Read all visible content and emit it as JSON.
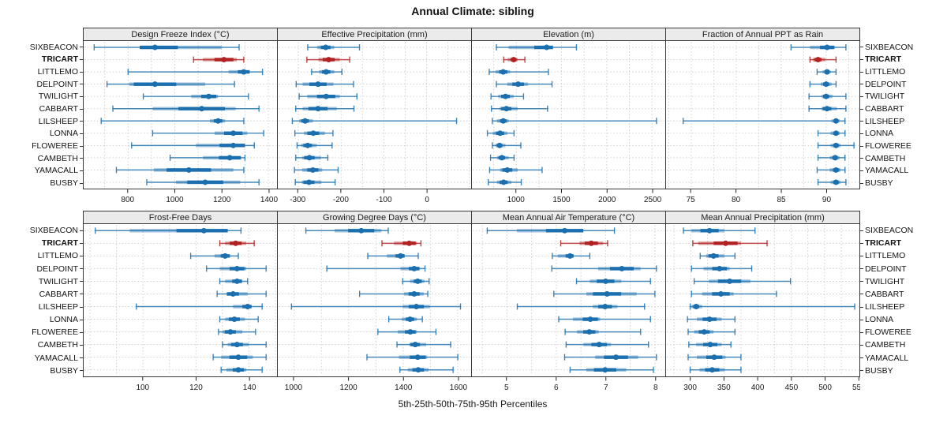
{
  "title": "Annual Climate: sibling",
  "footer": "5th-25th-50th-75th-95th Percentiles",
  "legend_meaning": "whisker=5th-95th, thick bar=25th-75th, dot=50th percentile",
  "stations": [
    "SIXBEACON",
    "TRICART",
    "LITTLEMO",
    "DELPOINT",
    "TWILIGHT",
    "CABBART",
    "LILSHEEP",
    "LONNA",
    "FLOWEREE",
    "CAMBETH",
    "YAMACALL",
    "BUSBY"
  ],
  "highlight_station": "TRICART",
  "colors": {
    "primary": "#1b6fae",
    "highlight": "#b22222",
    "grid": "#cfcfcf",
    "strip_bg": "#ebebeb",
    "border": "#383838",
    "text": "#1a1a1a"
  },
  "chart_data": [
    {
      "type": "percentile-dotplot",
      "title": "Design Freeze Index (°C)",
      "xlim": [
        610,
        1437
      ],
      "ticks": [
        800,
        1000,
        1200,
        1400
      ],
      "minor_step": 100,
      "series": [
        {
          "name": "SIXBEACON",
          "values": [
            655,
            850,
            915,
            1200,
            1275
          ]
        },
        {
          "name": "TRICART",
          "values": [
            1080,
            1120,
            1210,
            1265,
            1295
          ]
        },
        {
          "name": "LITTLEMO",
          "values": [
            800,
            1230,
            1295,
            1320,
            1375
          ]
        },
        {
          "name": "DELPOINT",
          "values": [
            710,
            805,
            915,
            1130,
            1255
          ]
        },
        {
          "name": "TWILIGHT",
          "values": [
            865,
            1070,
            1145,
            1185,
            1315
          ]
        },
        {
          "name": "CABBART",
          "values": [
            735,
            905,
            1115,
            1260,
            1360
          ]
        },
        {
          "name": "LILSHEEP",
          "values": [
            685,
            1150,
            1185,
            1215,
            1295
          ]
        },
        {
          "name": "LONNA",
          "values": [
            905,
            1170,
            1250,
            1310,
            1380
          ]
        },
        {
          "name": "FLOWEREE",
          "values": [
            815,
            1090,
            1250,
            1300,
            1340
          ]
        },
        {
          "name": "CAMBETH",
          "values": [
            980,
            1120,
            1235,
            1285,
            1300
          ]
        },
        {
          "name": "YAMACALL",
          "values": [
            750,
            910,
            1060,
            1250,
            1295
          ]
        },
        {
          "name": "BUSBY",
          "values": [
            880,
            1005,
            1130,
            1280,
            1360
          ]
        }
      ]
    },
    {
      "type": "percentile-dotplot",
      "title": "Effective Precipitation (mm)",
      "xlim": [
        -348,
        104
      ],
      "ticks": [
        -300,
        -200,
        -100,
        0
      ],
      "minor_step": 50,
      "series": [
        {
          "name": "SIXBEACON",
          "values": [
            -278,
            -256,
            -236,
            -216,
            -157
          ]
        },
        {
          "name": "TRICART",
          "values": [
            -280,
            -253,
            -229,
            -203,
            -180
          ]
        },
        {
          "name": "LITTLEMO",
          "values": [
            -269,
            -251,
            -235,
            -216,
            -198
          ]
        },
        {
          "name": "DELPOINT",
          "values": [
            -305,
            -290,
            -254,
            -218,
            -171
          ]
        },
        {
          "name": "TWILIGHT",
          "values": [
            -298,
            -279,
            -235,
            -203,
            -163
          ]
        },
        {
          "name": "CABBART",
          "values": [
            -306,
            -290,
            -254,
            -210,
            -170
          ]
        },
        {
          "name": "LILSHEEP",
          "values": [
            -314,
            -298,
            -284,
            -266,
            70
          ]
        },
        {
          "name": "LONNA",
          "values": [
            -308,
            -287,
            -265,
            -238,
            -219
          ]
        },
        {
          "name": "FLOWEREE",
          "values": [
            -303,
            -293,
            -278,
            -257,
            -221
          ]
        },
        {
          "name": "CAMBETH",
          "values": [
            -306,
            -291,
            -274,
            -247,
            -231
          ]
        },
        {
          "name": "YAMACALL",
          "values": [
            -309,
            -291,
            -266,
            -244,
            -207
          ]
        },
        {
          "name": "BUSBY",
          "values": [
            -307,
            -292,
            -275,
            -246,
            -214
          ]
        }
      ]
    },
    {
      "type": "percentile-dotplot",
      "title": "Elevation (m)",
      "xlim": [
        509,
        2647
      ],
      "ticks": [
        1000,
        1500,
        2000,
        2500
      ],
      "minor_step": 250,
      "series": [
        {
          "name": "SIXBEACON",
          "values": [
            780,
            915,
            1335,
            1405,
            1665
          ]
        },
        {
          "name": "TRICART",
          "values": [
            860,
            905,
            970,
            1015,
            1095
          ]
        },
        {
          "name": "LITTLEMO",
          "values": [
            700,
            770,
            855,
            930,
            1355
          ]
        },
        {
          "name": "DELPOINT",
          "values": [
            780,
            900,
            1020,
            1130,
            1395
          ]
        },
        {
          "name": "TWILIGHT",
          "values": [
            720,
            800,
            880,
            970,
            1080
          ]
        },
        {
          "name": "CABBART",
          "values": [
            725,
            815,
            890,
            1015,
            1345
          ]
        },
        {
          "name": "LILSHEEP",
          "values": [
            735,
            785,
            855,
            915,
            2550
          ]
        },
        {
          "name": "LONNA",
          "values": [
            680,
            740,
            820,
            900,
            975
          ]
        },
        {
          "name": "FLOWEREE",
          "values": [
            735,
            770,
            815,
            880,
            1050
          ]
        },
        {
          "name": "CAMBETH",
          "values": [
            715,
            785,
            840,
            915,
            975
          ]
        },
        {
          "name": "YAMACALL",
          "values": [
            705,
            820,
            900,
            1015,
            1285
          ]
        },
        {
          "name": "BUSBY",
          "values": [
            690,
            785,
            860,
            945,
            1055
          ]
        }
      ]
    },
    {
      "type": "percentile-dotplot",
      "title": "Fraction of Annual PPT as Rain",
      "xlim": [
        72.2,
        93.7
      ],
      "ticks": [
        75,
        80,
        85,
        90
      ],
      "minor_step": 2.5,
      "series": [
        {
          "name": "SIXBEACON",
          "values": [
            86.1,
            88.2,
            90.1,
            91.0,
            92.2
          ]
        },
        {
          "name": "TRICART",
          "values": [
            88.2,
            88.5,
            89.1,
            89.9,
            91.1
          ]
        },
        {
          "name": "LITTLEMO",
          "values": [
            89.0,
            89.6,
            90.1,
            90.5,
            91.1
          ]
        },
        {
          "name": "DELPOINT",
          "values": [
            88.2,
            89.4,
            90.0,
            90.6,
            91.1
          ]
        },
        {
          "name": "TWILIGHT",
          "values": [
            88.1,
            89.5,
            90.0,
            90.7,
            92.2
          ]
        },
        {
          "name": "CABBART",
          "values": [
            88.1,
            89.5,
            90.1,
            91.2,
            92.2
          ]
        },
        {
          "name": "LILSHEEP",
          "values": [
            74.1,
            90.6,
            91.1,
            91.5,
            92.1
          ]
        },
        {
          "name": "LONNA",
          "values": [
            89.1,
            90.5,
            91.1,
            91.5,
            92.1
          ]
        },
        {
          "name": "FLOWEREE",
          "values": [
            89.1,
            90.5,
            91.1,
            91.6,
            93.1
          ]
        },
        {
          "name": "CAMBETH",
          "values": [
            89.1,
            90.4,
            91.0,
            91.5,
            92.1
          ]
        },
        {
          "name": "YAMACALL",
          "values": [
            89.0,
            90.4,
            91.1,
            91.6,
            92.1
          ]
        },
        {
          "name": "BUSBY",
          "values": [
            89.1,
            90.5,
            91.1,
            91.6,
            92.2
          ]
        }
      ]
    },
    {
      "type": "percentile-dotplot",
      "title": "Frost-Free Days",
      "xlim": [
        77.6,
        150.6
      ],
      "ticks": [
        100,
        120,
        140
      ],
      "minor_step": 10,
      "series": [
        {
          "name": "SIXBEACON",
          "values": [
            82,
            95,
            123,
            132,
            137
          ]
        },
        {
          "name": "TRICART",
          "values": [
            129,
            131,
            135,
            139,
            142
          ]
        },
        {
          "name": "LITTLEMO",
          "values": [
            118,
            127,
            131,
            133,
            136
          ]
        },
        {
          "name": "DELPOINT",
          "values": [
            124,
            129,
            135.5,
            139,
            146.5
          ]
        },
        {
          "name": "TWILIGHT",
          "values": [
            129,
            131,
            135.5,
            137.5,
            139.5
          ]
        },
        {
          "name": "CABBART",
          "values": [
            128,
            131.5,
            134,
            139.5,
            146.5
          ]
        },
        {
          "name": "LILSHEEP",
          "values": [
            97.5,
            134,
            139.5,
            141,
            145
          ]
        },
        {
          "name": "LONNA",
          "values": [
            129,
            131,
            134.5,
            138.5,
            143.5
          ]
        },
        {
          "name": "FLOWEREE",
          "values": [
            128.5,
            130,
            133,
            137.5,
            142.5
          ]
        },
        {
          "name": "CAMBETH",
          "values": [
            130,
            132,
            135.5,
            140,
            146.5
          ]
        },
        {
          "name": "YAMACALL",
          "values": [
            126.5,
            129.5,
            136,
            141.5,
            146.5
          ]
        },
        {
          "name": "BUSBY",
          "values": [
            129.5,
            131.5,
            136,
            139,
            145
          ]
        }
      ]
    },
    {
      "type": "percentile-dotplot",
      "title": "Growing Degree Days (°C)",
      "xlim": [
        940,
        1649
      ],
      "ticks": [
        1000,
        1200,
        1400,
        1600
      ],
      "minor_step": 100,
      "series": [
        {
          "name": "SIXBEACON",
          "values": [
            1043,
            1148,
            1246,
            1320,
            1345
          ]
        },
        {
          "name": "TRICART",
          "values": [
            1322,
            1366,
            1422,
            1450,
            1465
          ]
        },
        {
          "name": "LITTLEMO",
          "values": [
            1270,
            1340,
            1390,
            1405,
            1455
          ]
        },
        {
          "name": "DELPOINT",
          "values": [
            1120,
            1390,
            1440,
            1460,
            1480
          ]
        },
        {
          "name": "TWILIGHT",
          "values": [
            1398,
            1425,
            1453,
            1478,
            1495
          ]
        },
        {
          "name": "CABBART",
          "values": [
            1240,
            1403,
            1440,
            1475,
            1490
          ]
        },
        {
          "name": "LILSHEEP",
          "values": [
            990,
            1398,
            1448,
            1498,
            1610
          ]
        },
        {
          "name": "LONNA",
          "values": [
            1347,
            1395,
            1425,
            1450,
            1470
          ]
        },
        {
          "name": "FLOWEREE",
          "values": [
            1307,
            1380,
            1426,
            1450,
            1520
          ]
        },
        {
          "name": "CAMBETH",
          "values": [
            1377,
            1422,
            1444,
            1484,
            1574
          ]
        },
        {
          "name": "YAMACALL",
          "values": [
            1267,
            1384,
            1453,
            1488,
            1600
          ]
        },
        {
          "name": "BUSBY",
          "values": [
            1388,
            1417,
            1455,
            1493,
            1583
          ]
        }
      ]
    },
    {
      "type": "percentile-dotplot",
      "title": "Mean Annual Air Temperature (°C)",
      "xlim": [
        4.29,
        8.21
      ],
      "ticks": [
        5,
        6,
        7,
        8
      ],
      "minor_step": 0.5,
      "series": [
        {
          "name": "SIXBEACON",
          "values": [
            4.6,
            5.2,
            6.17,
            6.55,
            7.18
          ]
        },
        {
          "name": "TRICART",
          "values": [
            6.09,
            6.47,
            6.71,
            6.95,
            7.04
          ]
        },
        {
          "name": "LITTLEMO",
          "values": [
            5.92,
            6.03,
            6.28,
            6.35,
            6.68
          ]
        },
        {
          "name": "DELPOINT",
          "values": [
            5.91,
            6.85,
            7.33,
            7.71,
            8.03
          ]
        },
        {
          "name": "TWILIGHT",
          "values": [
            6.41,
            6.68,
            7.0,
            7.32,
            7.91
          ]
        },
        {
          "name": "CABBART",
          "values": [
            5.95,
            6.61,
            7.03,
            7.63,
            8.0
          ]
        },
        {
          "name": "LILSHEEP",
          "values": [
            5.21,
            6.74,
            6.99,
            7.24,
            7.79
          ]
        },
        {
          "name": "LONNA",
          "values": [
            6.05,
            6.34,
            6.69,
            6.89,
            7.91
          ]
        },
        {
          "name": "FLOWEREE",
          "values": [
            6.18,
            6.42,
            6.67,
            6.86,
            7.71
          ]
        },
        {
          "name": "CAMBETH",
          "values": [
            6.2,
            6.55,
            6.87,
            7.11,
            7.87
          ]
        },
        {
          "name": "YAMACALL",
          "values": [
            6.17,
            6.79,
            7.21,
            7.66,
            8.03
          ]
        },
        {
          "name": "BUSBY",
          "values": [
            6.28,
            6.61,
            6.99,
            7.42,
            7.97
          ]
        }
      ]
    },
    {
      "type": "percentile-dotplot",
      "title": "Mean Annual Precipitation (mm)",
      "xlim": [
        263,
        552
      ],
      "ticks": [
        300,
        350,
        400,
        450,
        500,
        550
      ],
      "minor_step": 25,
      "series": [
        {
          "name": "SIXBEACON",
          "values": [
            289,
            301,
            328,
            350,
            396
          ]
        },
        {
          "name": "TRICART",
          "values": [
            303,
            311,
            352,
            375,
            414
          ]
        },
        {
          "name": "LITTLEMO",
          "values": [
            314,
            323,
            334,
            350,
            366
          ]
        },
        {
          "name": "DELPOINT",
          "values": [
            301,
            319,
            343,
            358,
            391
          ]
        },
        {
          "name": "TWILIGHT",
          "values": [
            305,
            327,
            358,
            389,
            449
          ]
        },
        {
          "name": "CABBART",
          "values": [
            301,
            317,
            345,
            364,
            428
          ]
        },
        {
          "name": "LILSHEEP",
          "values": [
            299,
            301,
            308,
            317,
            545
          ]
        },
        {
          "name": "LONNA",
          "values": [
            295,
            309,
            328,
            346,
            366
          ]
        },
        {
          "name": "FLOWEREE",
          "values": [
            296,
            305,
            320,
            334,
            366
          ]
        },
        {
          "name": "CAMBETH",
          "values": [
            297,
            308,
            329,
            346,
            360
          ]
        },
        {
          "name": "YAMACALL",
          "values": [
            296,
            309,
            335,
            352,
            375
          ]
        },
        {
          "name": "BUSBY",
          "values": [
            299,
            313,
            332,
            351,
            375
          ]
        }
      ]
    }
  ],
  "layout_rows": [
    {
      "panel_titles": [
        "Design Freeze Index (°C)",
        "Effective Precipitation (mm)",
        "Elevation (m)",
        "Fraction of Annual PPT as Rain"
      ]
    },
    {
      "panel_titles": [
        "Frost-Free Days",
        "Growing Degree Days (°C)",
        "Mean Annual Air Temperature (°C)",
        "Mean Annual Precipitation (mm)"
      ]
    }
  ]
}
